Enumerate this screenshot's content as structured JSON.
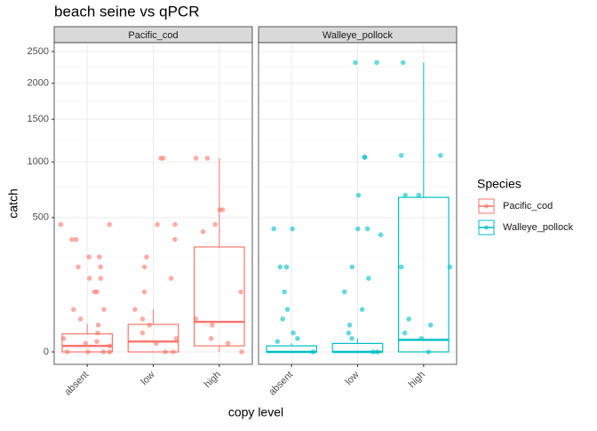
{
  "chart_data": {
    "type": "box",
    "title": "beach seine vs qPCR",
    "x_label": "copy level",
    "y_label": "catch",
    "categories": [
      "absent",
      "low",
      "high"
    ],
    "y_scale": "sqrt",
    "ylim": [
      0,
      2650
    ],
    "yticks": [
      0,
      500,
      1000,
      1500,
      2000,
      2500
    ],
    "grid": true,
    "legend_title": "Species",
    "legend_position": "right",
    "series": [
      {
        "name": "Pacific_cod",
        "color": "#f8766d",
        "boxes": [
          {
            "min": 0,
            "q1": 0,
            "median": 1,
            "q3": 9,
            "max": 22
          },
          {
            "min": 0,
            "q1": 0,
            "median": 3,
            "q3": 21,
            "max": 50
          },
          {
            "min": 0,
            "q1": 1,
            "median": 25,
            "q3": 305,
            "max": 1040
          }
        ],
        "points": [
          [
            450,
            450,
            350,
            350,
            250,
            250,
            200,
            200,
            150,
            150,
            100,
            100,
            50,
            50,
            30,
            20,
            10,
            5,
            3,
            2,
            1,
            0,
            0,
            0,
            0
          ],
          [
            1040,
            1040,
            450,
            450,
            350,
            250,
            200,
            150,
            100,
            50,
            30,
            20,
            10,
            5,
            2,
            0,
            0
          ],
          [
            1040,
            1040,
            560,
            560,
            450,
            400,
            100,
            30,
            20,
            5,
            2,
            0
          ]
        ]
      },
      {
        "name": "Walleye_pollock",
        "color": "#00bfc4",
        "boxes": [
          {
            "min": 0,
            "q1": 0,
            "median": 0,
            "q3": 1,
            "max": 2
          },
          {
            "min": 0,
            "q1": 0,
            "median": 0,
            "q3": 2,
            "max": 5
          },
          {
            "min": 0,
            "q1": 0,
            "median": 4,
            "q3": 662,
            "max": 2320
          }
        ],
        "points": [
          [
            420,
            420,
            200,
            200,
            100,
            50,
            30,
            10,
            5,
            3,
            0
          ],
          [
            2320,
            2320,
            1050,
            1050,
            680,
            420,
            420,
            380,
            200,
            150,
            100,
            50,
            20,
            10,
            5,
            0,
            0
          ],
          [
            2320,
            1070,
            1070,
            680,
            680,
            200,
            200,
            30,
            20,
            10,
            5,
            0
          ]
        ]
      }
    ]
  }
}
